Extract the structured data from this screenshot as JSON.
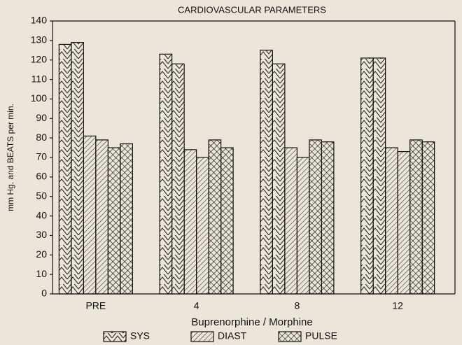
{
  "chart_data": {
    "type": "bar",
    "title": "CARDIOVASCULAR PARAMETERS",
    "x_label": "Buprenorphine  /  Morphine",
    "y_label": "mm Hg. and BEATS per min.",
    "categories": [
      "PRE",
      "4",
      "8",
      "12"
    ],
    "series": [
      {
        "name": "SYS",
        "color": "#111111",
        "hatch": "chevron",
        "values": [
          128,
          123,
          125,
          121
        ]
      },
      {
        "name": "SYS",
        "color": "#111111",
        "hatch": "chevron",
        "values": [
          129,
          118,
          118,
          121
        ]
      },
      {
        "name": "DIAST",
        "color": "#111111",
        "hatch": "diagonal",
        "values": [
          81,
          74,
          75,
          75
        ]
      },
      {
        "name": "DIAST",
        "color": "#111111",
        "hatch": "diagonal",
        "values": [
          79,
          70,
          70,
          73
        ]
      },
      {
        "name": "PULSE",
        "color": "#111111",
        "hatch": "cross",
        "values": [
          75,
          79,
          79,
          79
        ]
      },
      {
        "name": "PULSE",
        "color": "#111111",
        "hatch": "cross",
        "values": [
          77,
          75,
          78,
          78
        ]
      }
    ],
    "ylim": [
      0,
      140
    ],
    "yticks": [
      0,
      10,
      20,
      30,
      40,
      50,
      60,
      70,
      80,
      90,
      100,
      110,
      120,
      130,
      140
    ],
    "grid": false,
    "legend": "bottom"
  }
}
